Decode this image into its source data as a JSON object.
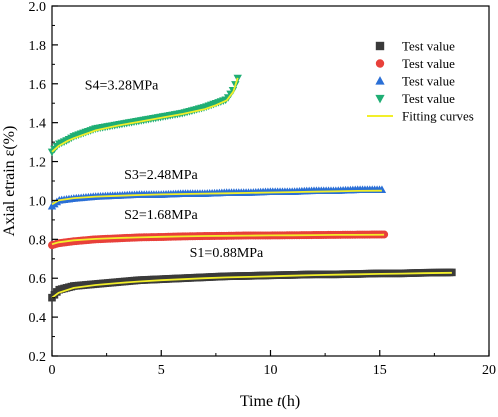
{
  "chart_data": {
    "type": "scatter",
    "title": "",
    "xlabel": "Time t(h)",
    "xlabel_parts": {
      "prefix": "Time ",
      "italic": "t",
      "suffix": "(h)"
    },
    "ylabel": "Axial etrain ε(%)",
    "xlim": [
      0,
      20
    ],
    "ylim": [
      0.2,
      2.0
    ],
    "xticks": [
      0,
      5,
      10,
      15,
      20
    ],
    "xtick_labels": [
      "0",
      "5",
      "10",
      "15",
      "20"
    ],
    "yticks": [
      0.2,
      0.4,
      0.6,
      0.8,
      1.0,
      1.2,
      1.4,
      1.6,
      1.8,
      2.0
    ],
    "ytick_labels": [
      "0.2",
      "0.4",
      "0.6",
      "0.8",
      "1.0",
      "1.2",
      "1.4",
      "1.6",
      "1.8",
      "2.0"
    ],
    "grid": false,
    "legend_position": "top-right",
    "legend": [
      {
        "label": "Test value",
        "marker": "square",
        "color": "#3a3a3a"
      },
      {
        "label": "Test value",
        "marker": "circle",
        "color": "#e8403a"
      },
      {
        "label": "Test value",
        "marker": "triangle-up",
        "color": "#2a6fd6"
      },
      {
        "label": "Test value",
        "marker": "triangle-down",
        "color": "#1fae74"
      },
      {
        "label": "Fitting curves",
        "marker": "line",
        "color": "#f2ef2a"
      }
    ],
    "series": [
      {
        "label": "S1=0.88MPa",
        "marker": "square",
        "color": "#3a3a3a",
        "x": [
          0.0,
          0.3,
          1,
          2,
          3,
          4,
          5,
          6,
          7,
          8,
          9,
          10,
          11,
          12,
          13,
          14,
          15,
          16,
          17,
          18.3
        ],
        "y": [
          0.5,
          0.54,
          0.56,
          0.57,
          0.58,
          0.59,
          0.595,
          0.6,
          0.605,
          0.61,
          0.612,
          0.615,
          0.617,
          0.62,
          0.62,
          0.622,
          0.625,
          0.625,
          0.628,
          0.63
        ]
      },
      {
        "label": "S2=1.68MPa",
        "marker": "circle",
        "color": "#e8403a",
        "x": [
          0.0,
          0.3,
          1,
          2,
          3,
          4,
          5,
          6,
          7,
          8,
          9,
          10,
          11,
          12,
          13,
          14,
          15.2
        ],
        "y": [
          0.77,
          0.78,
          0.79,
          0.8,
          0.805,
          0.81,
          0.812,
          0.815,
          0.817,
          0.818,
          0.82,
          0.82,
          0.821,
          0.822,
          0.823,
          0.824,
          0.825
        ]
      },
      {
        "label": "S3=2.48MPa",
        "marker": "triangle-up",
        "color": "#2a6fd6",
        "x": [
          0.0,
          0.3,
          1,
          2,
          3,
          4,
          5,
          6,
          7,
          8,
          9,
          10,
          11,
          12,
          13,
          14,
          15.1
        ],
        "y": [
          0.97,
          1.0,
          1.01,
          1.02,
          1.025,
          1.03,
          1.03,
          1.035,
          1.035,
          1.04,
          1.04,
          1.045,
          1.045,
          1.05,
          1.05,
          1.055,
          1.055
        ]
      },
      {
        "label": "S4=3.28MPa",
        "marker": "triangle-down",
        "color": "#1fae74",
        "x": [
          0.0,
          0.3,
          0.7,
          1,
          2,
          3,
          4,
          5,
          6,
          7,
          7.5,
          8,
          8.3,
          8.5
        ],
        "y": [
          1.25,
          1.29,
          1.31,
          1.33,
          1.37,
          1.39,
          1.41,
          1.43,
          1.45,
          1.48,
          1.5,
          1.52,
          1.57,
          1.63
        ]
      }
    ],
    "fitting_curves": [
      {
        "x": [
          0,
          0.3,
          1,
          2,
          3,
          4,
          5,
          6,
          7,
          8,
          9,
          10,
          11,
          12,
          13,
          14,
          15,
          16,
          17,
          18.3
        ],
        "y": [
          0.5,
          0.525,
          0.55,
          0.565,
          0.575,
          0.583,
          0.59,
          0.595,
          0.6,
          0.604,
          0.607,
          0.61,
          0.613,
          0.616,
          0.618,
          0.62,
          0.622,
          0.624,
          0.626,
          0.628
        ]
      },
      {
        "x": [
          0,
          0.3,
          1,
          2,
          3,
          4,
          5,
          6,
          7,
          8,
          9,
          10,
          11,
          12,
          13,
          14,
          15.2
        ],
        "y": [
          0.775,
          0.785,
          0.795,
          0.802,
          0.807,
          0.81,
          0.813,
          0.815,
          0.817,
          0.818,
          0.819,
          0.82,
          0.821,
          0.822,
          0.823,
          0.823,
          0.824
        ]
      },
      {
        "x": [
          0,
          0.3,
          1,
          2,
          3,
          4,
          5,
          6,
          7,
          8,
          9,
          10,
          11,
          12,
          13,
          14,
          15.1
        ],
        "y": [
          0.98,
          1.0,
          1.012,
          1.02,
          1.024,
          1.028,
          1.031,
          1.033,
          1.035,
          1.037,
          1.039,
          1.041,
          1.043,
          1.045,
          1.047,
          1.049,
          1.05
        ]
      },
      {
        "x": [
          0,
          0.3,
          0.7,
          1,
          2,
          3,
          4,
          5,
          6,
          7,
          7.5,
          8,
          8.3,
          8.5
        ],
        "y": [
          1.25,
          1.28,
          1.305,
          1.32,
          1.36,
          1.385,
          1.405,
          1.425,
          1.445,
          1.47,
          1.49,
          1.515,
          1.56,
          1.63
        ]
      }
    ],
    "annotations": [
      {
        "text": "S4=3.28MPa",
        "x": 1.5,
        "y": 1.57
      },
      {
        "text": "S3=2.48MPa",
        "x": 3.3,
        "y": 1.11
      },
      {
        "text": "S2=1.68MPa",
        "x": 3.3,
        "y": 0.905
      },
      {
        "text": "S1=0.88MPa",
        "x": 6.3,
        "y": 0.71
      }
    ]
  }
}
